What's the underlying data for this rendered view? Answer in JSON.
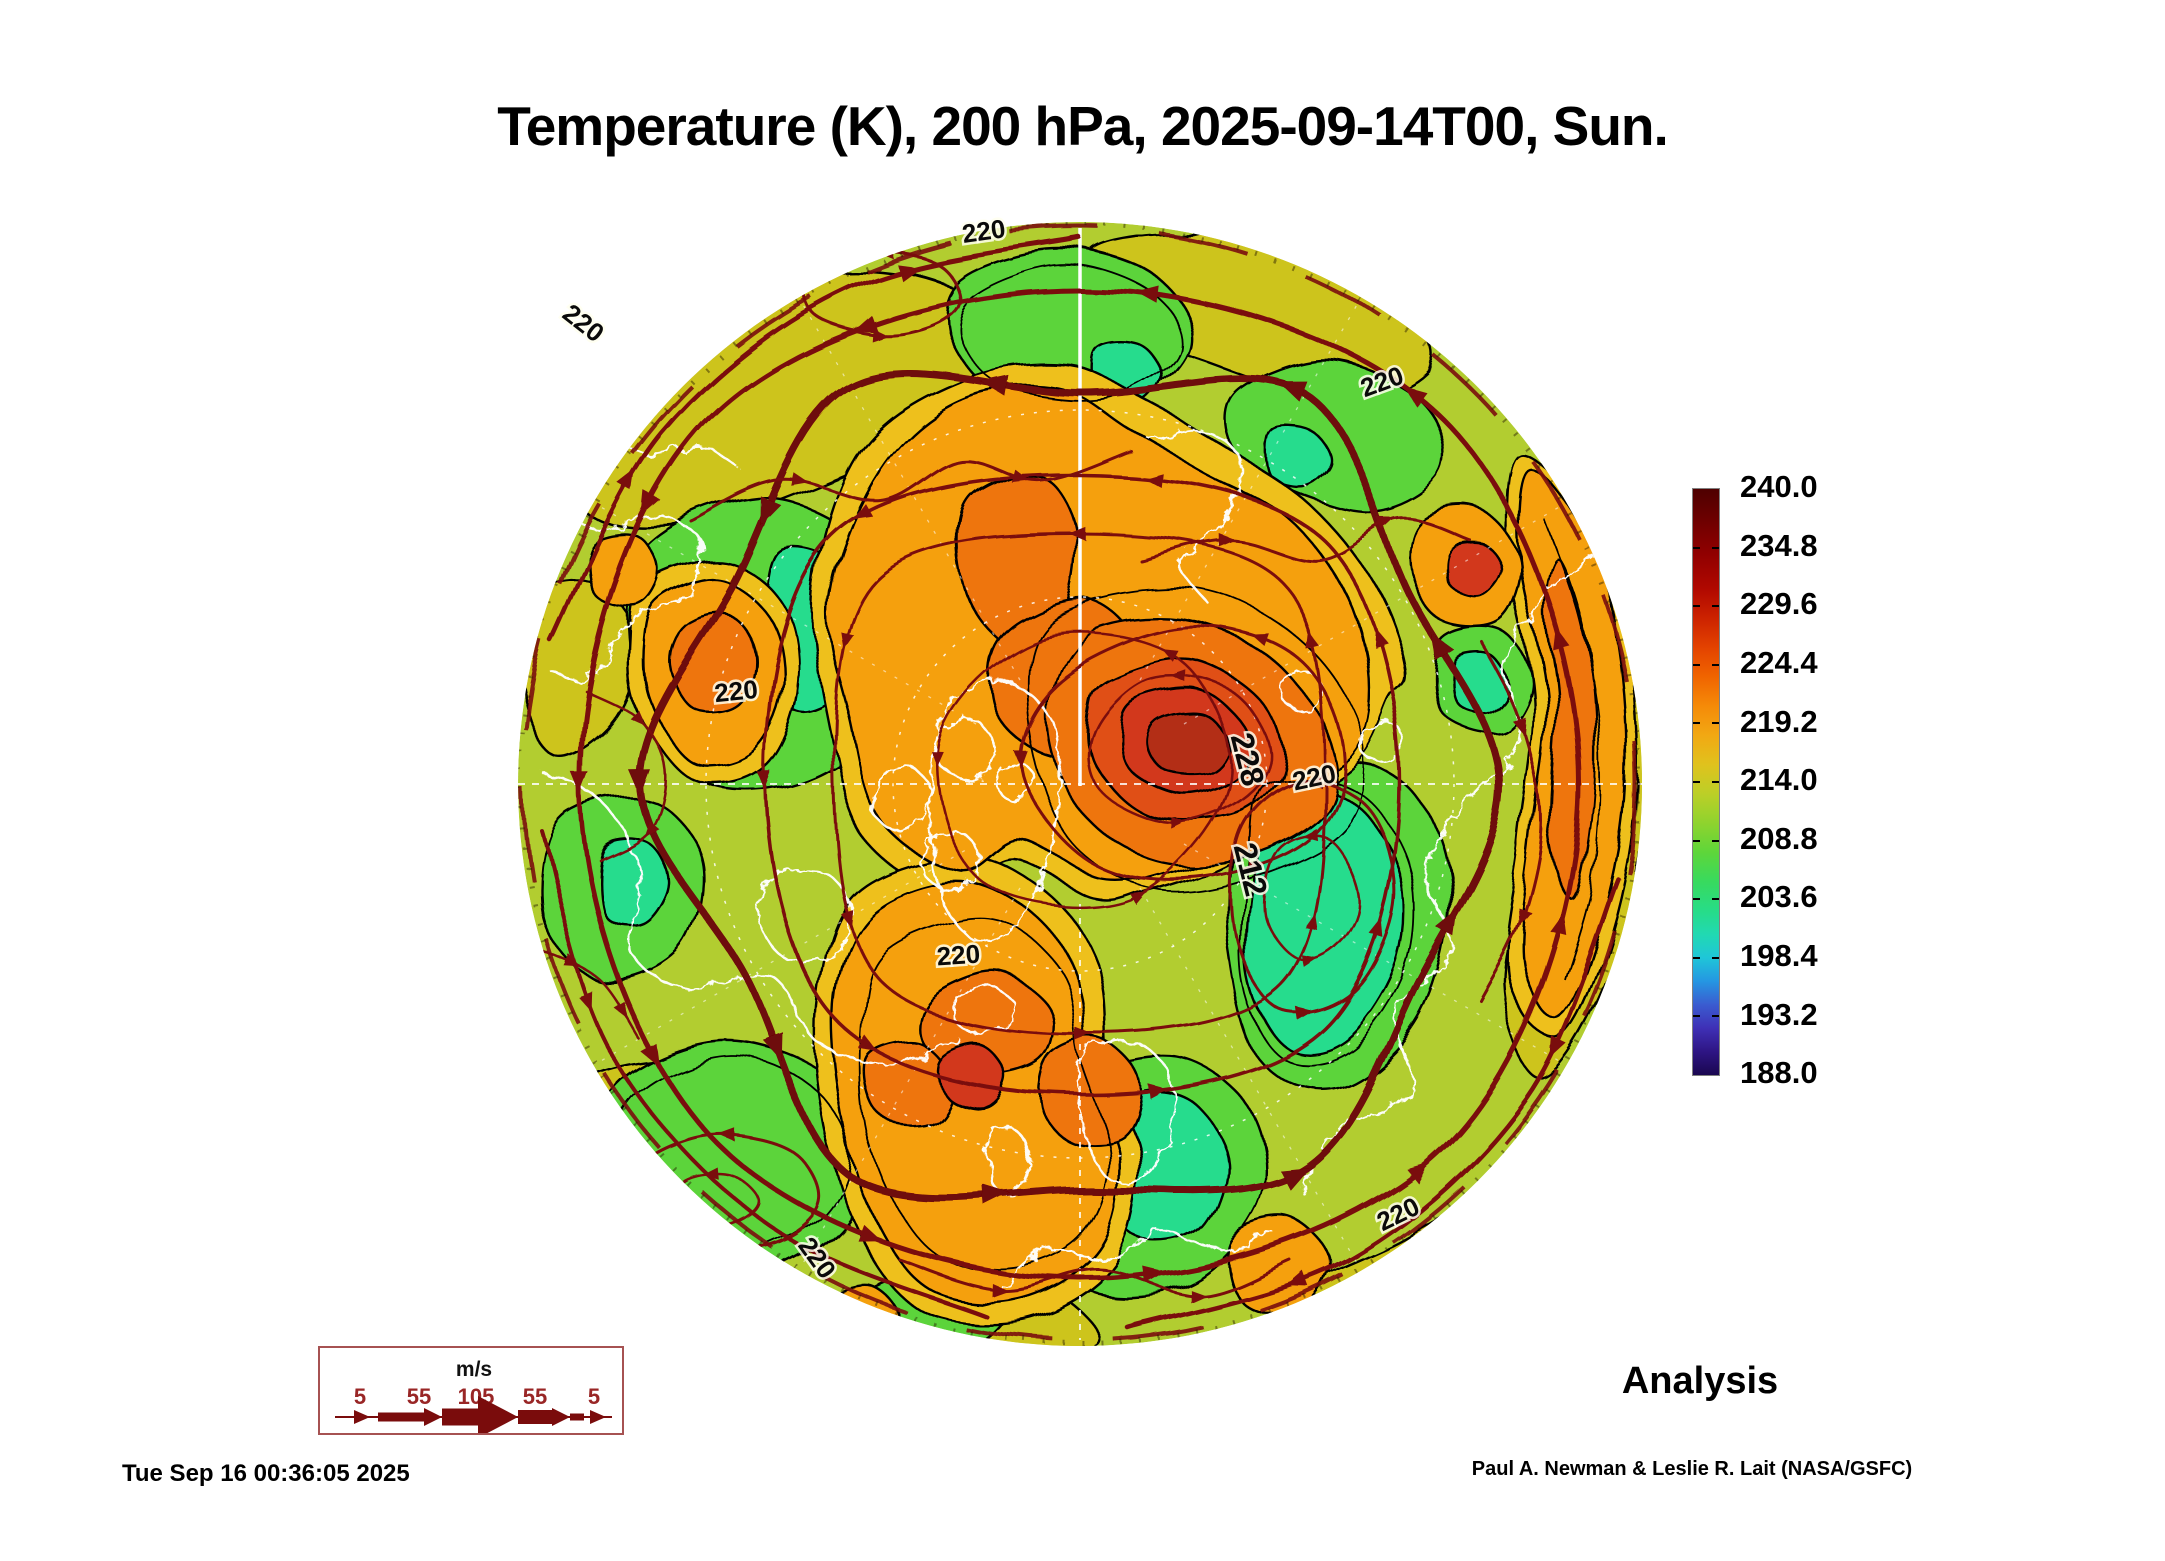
{
  "title": "Temperature (K), 200 hPa, 2025-09-14T00, Sun.",
  "colorbar": {
    "tick_labels": [
      "240.0",
      "234.8",
      "229.6",
      "224.4",
      "219.2",
      "214.0",
      "208.8",
      "203.6",
      "198.4",
      "193.2",
      "188.0"
    ]
  },
  "wind_legend": {
    "units_label": "m/s",
    "speed_labels": [
      "5",
      "55",
      "105",
      "55",
      "5"
    ]
  },
  "map": {
    "contour_labels": [
      {
        "text": "220"
      },
      {
        "text": "220"
      },
      {
        "text": "220"
      },
      {
        "text": "220"
      },
      {
        "text": "228"
      },
      {
        "text": "220"
      },
      {
        "text": "212"
      },
      {
        "text": "220"
      },
      {
        "text": "220"
      },
      {
        "text": "220"
      }
    ]
  },
  "footer": {
    "timestamp": "Tue Sep 16 00:36:05 2025",
    "credit": "Paul A. Newman & Leslie R. Lait (NASA/GSFC)"
  },
  "analysis_label": "Analysis",
  "chart_data": {
    "type": "heatmap",
    "title": "Temperature (K), 200 hPa, 2025-09-14T00, Sun.",
    "variable": "Temperature",
    "units": "K",
    "level": "200 hPa",
    "valid_time": "2025-09-14T00",
    "run_label": "Analysis",
    "colorbar_ticks": [
      240.0,
      234.8,
      229.6,
      224.4,
      219.2,
      214.0,
      208.8,
      203.6,
      198.4,
      193.2,
      188.0
    ],
    "colorbar_range": [
      188.0,
      240.0
    ],
    "visible_contour_values_K": [
      212,
      220,
      228
    ],
    "wind_speed_scale_ms": [
      5,
      55,
      105,
      55,
      5
    ],
    "generated": "Tue Sep 16 00:36:05 2025",
    "credit": "Paul A. Newman & Leslie R. Lait (NASA/GSFC)"
  }
}
